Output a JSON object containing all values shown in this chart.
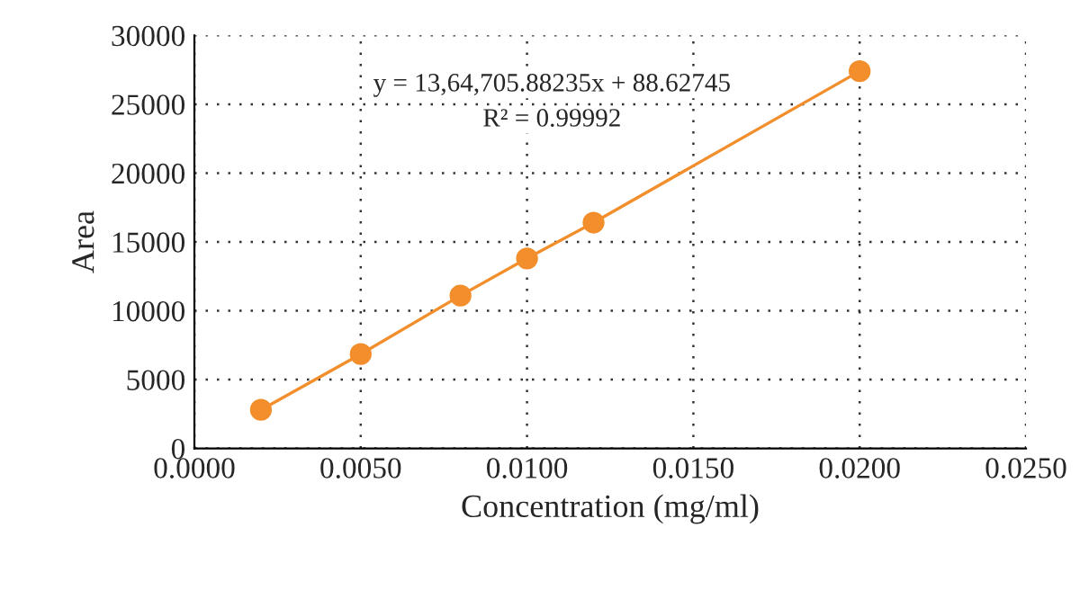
{
  "chart_data": {
    "type": "line",
    "xlabel": "Concentration (mg/ml)",
    "ylabel": "Area",
    "x": [
      0.002,
      0.005,
      0.008,
      0.01,
      0.012,
      0.02
    ],
    "series": [
      {
        "color": "#f28e2b",
        "values": [
          2800,
          6850,
          11100,
          13800,
          16400,
          27400
        ]
      }
    ],
    "xlim": [
      0,
      0.025
    ],
    "xticks": [
      {
        "value": 0,
        "label": "0.0000"
      },
      {
        "value": 0.005,
        "label": "0.0050"
      },
      {
        "value": 0.01,
        "label": "0.0100"
      },
      {
        "value": 0.015,
        "label": "0.0150"
      },
      {
        "value": 0.02,
        "label": "0.0200"
      },
      {
        "value": 0.025,
        "label": "0.0250"
      }
    ],
    "ylim": [
      0,
      30000
    ],
    "yticks": [
      0,
      5000,
      10000,
      15000,
      20000,
      25000,
      30000
    ],
    "annotations": [
      "y = 13,64,705.88235x + 88.62745",
      "R² = 0.99992"
    ],
    "grid": true,
    "marker": "circle",
    "line_style": "solid"
  }
}
